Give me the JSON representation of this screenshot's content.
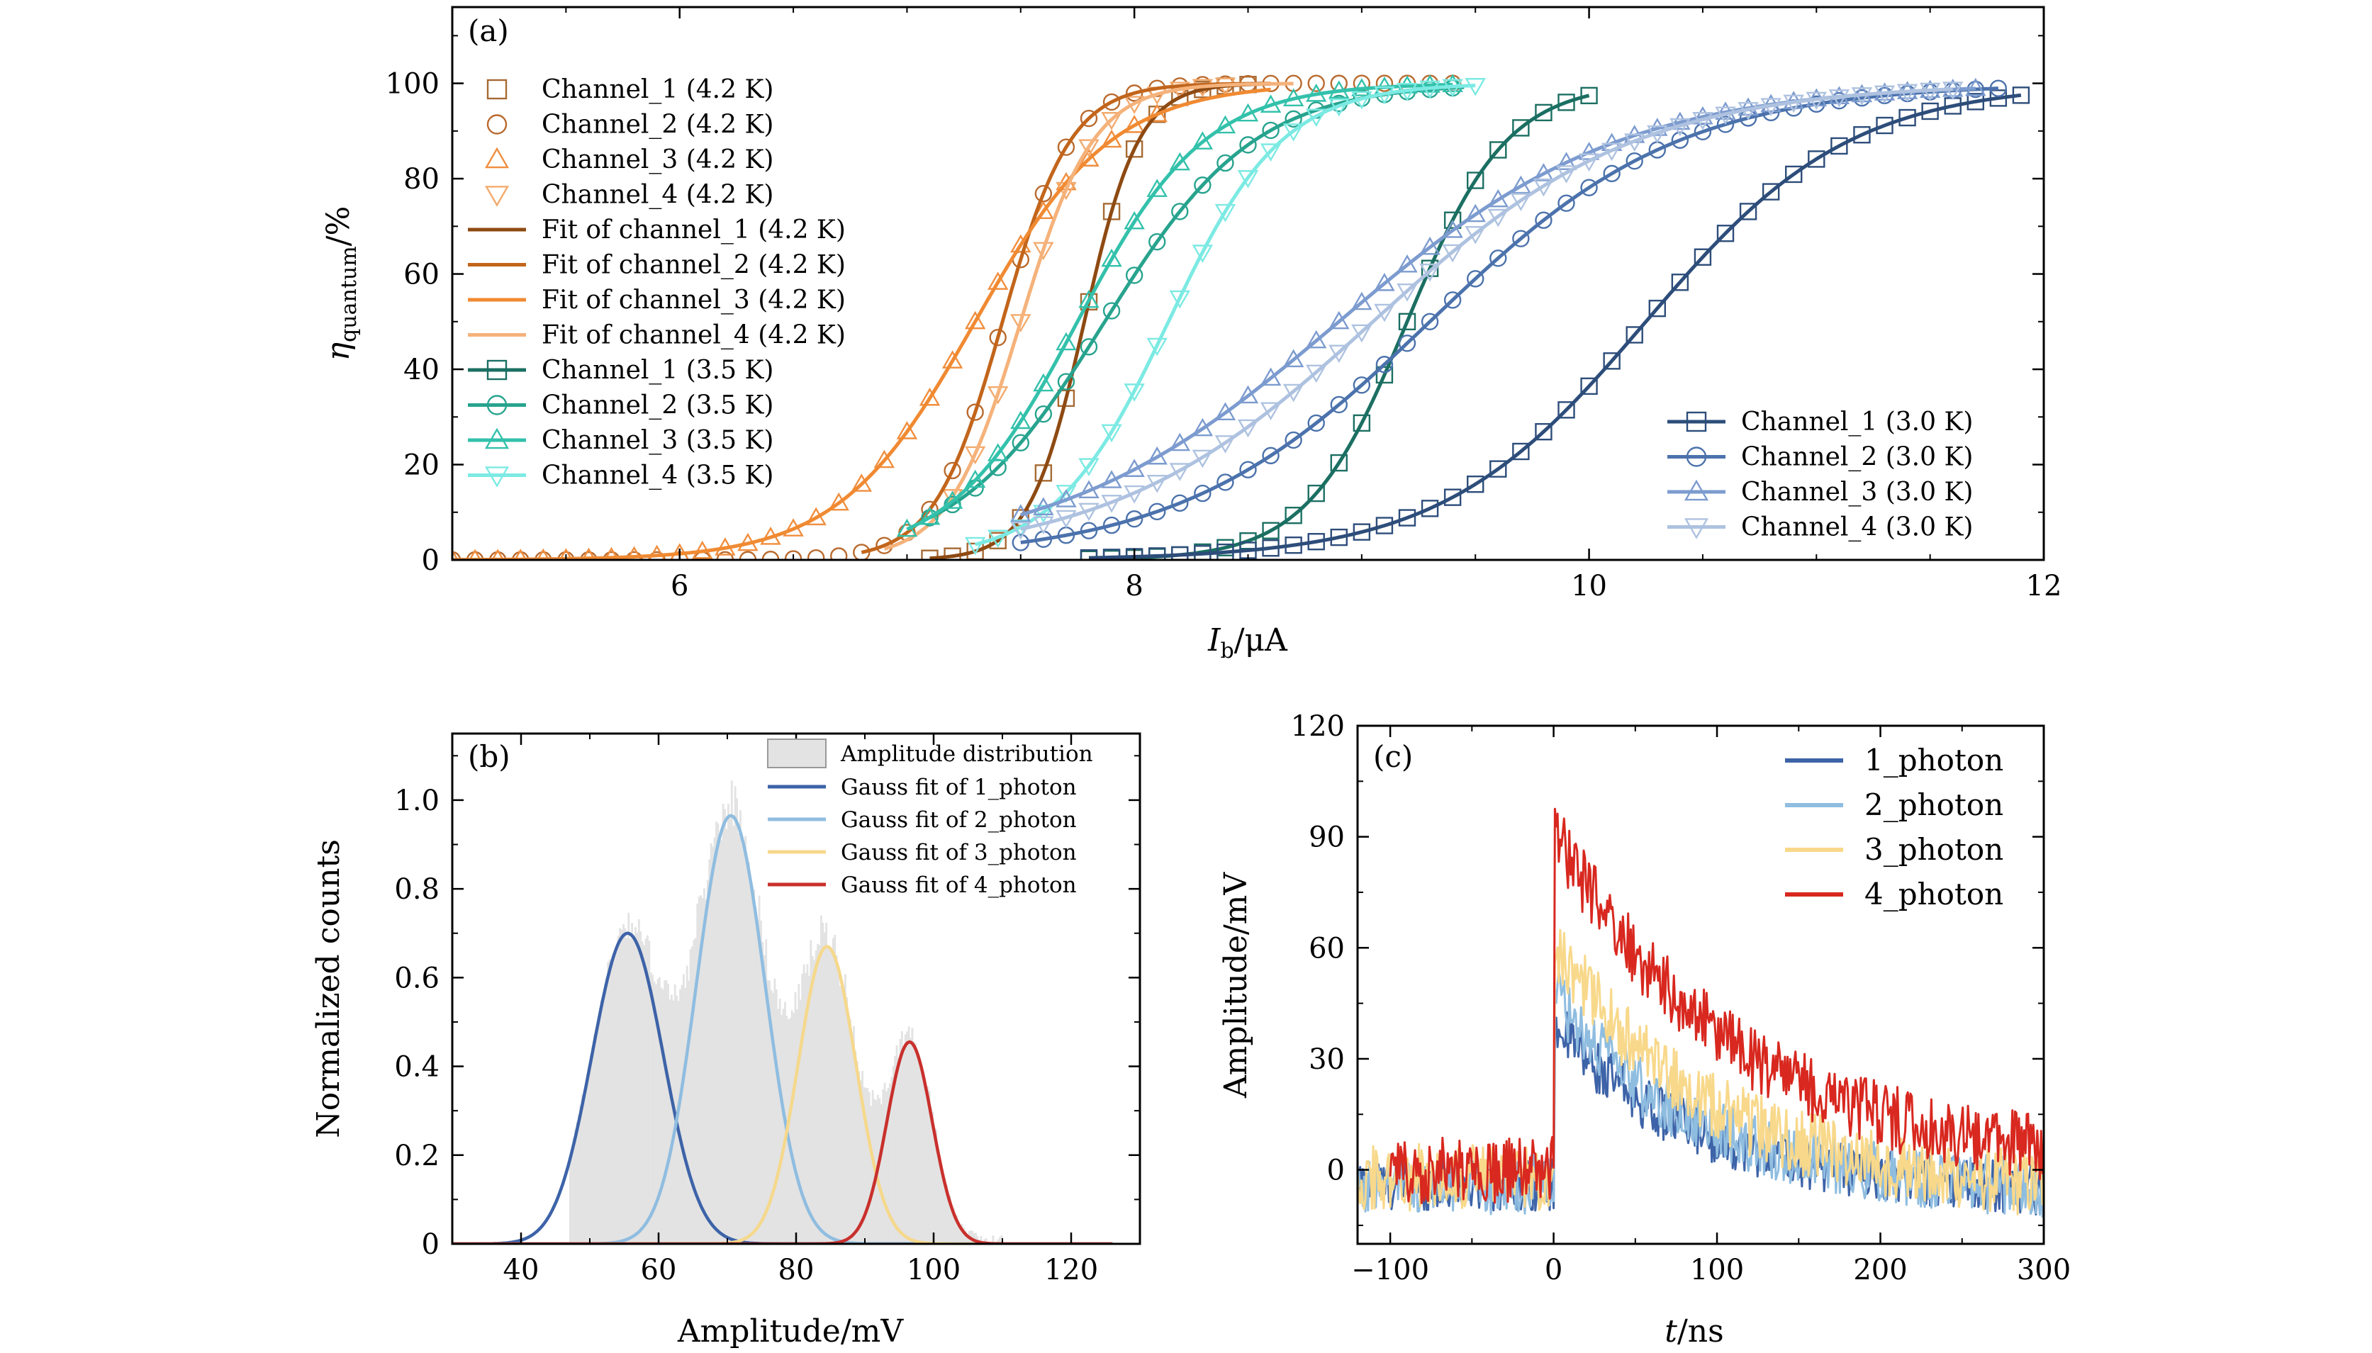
{
  "chart_data": [
    {
      "type": "line",
      "panel_label": "(a)",
      "xlabel": "I_b/μA",
      "ylabel": "η_quantum/%",
      "xlim": [
        5,
        12
      ],
      "ylim": [
        0,
        116
      ],
      "xticks": [
        6,
        8,
        10,
        12
      ],
      "yticks": [
        0,
        20,
        40,
        60,
        80,
        100
      ],
      "grid": false,
      "legend_left": "top-left",
      "legend_right": "bottom-right",
      "series": [
        {
          "name": "Channel_1 (4.2 K)",
          "role": "points",
          "marker": "square",
          "color": "#a66a33",
          "curve": {
            "i50": 7.78,
            "w": 0.12,
            "xmin": 7.1,
            "xmax": 8.5
          }
        },
        {
          "name": "Channel_2 (4.2 K)",
          "role": "points",
          "marker": "circle",
          "color": "#b96a2e",
          "curve": {
            "i50": 7.42,
            "w": 0.15,
            "xmin": 5.0,
            "xmax": 9.45
          }
        },
        {
          "name": "Channel_3 (4.2 K)",
          "role": "points",
          "marker": "triangle",
          "color": "#f08e3e",
          "curve": {
            "i50": 7.3,
            "w": 0.3,
            "xmin": 5.0,
            "xmax": 8.1
          }
        },
        {
          "name": "Channel_4 (4.2 K)",
          "role": "points",
          "marker": "triangle-down",
          "color": "#f3aa6d",
          "curve": {
            "i50": 7.5,
            "w": 0.16,
            "xmin": 7.2,
            "xmax": 8.4
          }
        },
        {
          "name": "Fit of channel_1 (4.2 K)",
          "role": "line",
          "color": "#8e4a12",
          "curve": {
            "i50": 7.78,
            "w": 0.12,
            "xmin": 7.1,
            "xmax": 8.6
          }
        },
        {
          "name": "Fit of channel_2 (4.2 K)",
          "role": "line",
          "color": "#c2651b",
          "curve": {
            "i50": 7.42,
            "w": 0.15,
            "xmin": 6.8,
            "xmax": 8.6
          }
        },
        {
          "name": "Fit of channel_3 (4.2 K)",
          "role": "line",
          "color": "#f08a32",
          "curve": {
            "i50": 7.3,
            "w": 0.3,
            "xmin": 5.0,
            "xmax": 8.6
          }
        },
        {
          "name": "Fit of channel_4 (4.2 K)",
          "role": "line",
          "color": "#f5b27a",
          "curve": {
            "i50": 7.5,
            "w": 0.16,
            "xmin": 6.9,
            "xmax": 8.7
          }
        },
        {
          "name": "Channel_1 (3.5 K)",
          "role": "both",
          "marker": "square",
          "color": "#1b6f62",
          "curve": {
            "i50": 9.2,
            "w": 0.22,
            "xmin": 7.8,
            "xmax": 10.0
          }
        },
        {
          "name": "Channel_2 (3.5 K)",
          "role": "both",
          "marker": "circle",
          "color": "#27a38e",
          "curve": {
            "i50": 7.87,
            "w": 0.33,
            "xmin": 7.1,
            "xmax": 9.45
          }
        },
        {
          "name": "Channel_3 (3.5 K)",
          "role": "both",
          "marker": "triangle",
          "color": "#33c1ab",
          "curve": {
            "i50": 7.75,
            "w": 0.28,
            "xmin": 7.0,
            "xmax": 9.4
          }
        },
        {
          "name": "Channel_4 (3.5 K)",
          "role": "both",
          "marker": "triangle-down",
          "color": "#7ceae3",
          "curve": {
            "i50": 8.15,
            "w": 0.25,
            "xmin": 7.3,
            "xmax": 9.5
          }
        },
        {
          "name": "Channel_1 (3.0 K)",
          "role": "both",
          "marker": "square",
          "color": "#2d4d7a",
          "curve": {
            "i50": 10.25,
            "w": 0.45,
            "xmin": 7.8,
            "xmax": 11.9
          }
        },
        {
          "name": "Channel_2 (3.0 K)",
          "role": "both",
          "marker": "circle",
          "color": "#4b72ac",
          "curve": {
            "i50": 9.3,
            "w": 0.55,
            "xmin": 7.5,
            "xmax": 11.8
          }
        },
        {
          "name": "Channel_3 (3.0 K)",
          "role": "both",
          "marker": "triangle",
          "color": "#7c9bcf",
          "curve": {
            "i50": 8.9,
            "w": 0.62,
            "xmin": 7.5,
            "xmax": 11.7
          }
        },
        {
          "name": "Channel_4 (3.0 K)",
          "role": "both",
          "marker": "triangle-down",
          "color": "#aec2e0",
          "curve": {
            "i50": 9.05,
            "w": 0.58,
            "xmin": 7.5,
            "xmax": 11.6
          }
        }
      ]
    },
    {
      "type": "area",
      "panel_label": "(b)",
      "xlabel": "Amplitude/mV",
      "ylabel": "Normalized counts",
      "xlim": [
        30,
        130
      ],
      "ylim": [
        0,
        1.15
      ],
      "xticks": [
        40,
        60,
        80,
        100,
        120
      ],
      "yticks": [
        0,
        0.2,
        0.4,
        0.6,
        0.8,
        1.0
      ],
      "ytick_labels": [
        "0",
        "0.2",
        "0.4",
        "0.6",
        "0.8",
        "1.0"
      ],
      "grid": false,
      "legend": "top-right",
      "histogram": {
        "name": "Amplitude distribution",
        "color": "#e3e3e3",
        "xmin": 47,
        "xmax": 110
      },
      "series": [
        {
          "name": "Gauss fit of 1_photon",
          "color": "#3d63a8",
          "mu": 55.5,
          "sigma": 5.2,
          "amp": 0.7
        },
        {
          "name": "Gauss fit of 2_photon",
          "color": "#8fbde0",
          "mu": 70.5,
          "sigma": 5.0,
          "amp": 0.965
        },
        {
          "name": "Gauss fit of 3_photon",
          "color": "#f6d88c",
          "mu": 84.5,
          "sigma": 4.2,
          "amp": 0.67
        },
        {
          "name": "Gauss fit of 4_photon",
          "color": "#c9302c",
          "mu": 96.5,
          "sigma": 3.3,
          "amp": 0.455
        }
      ]
    },
    {
      "type": "line",
      "panel_label": "(c)",
      "xlabel": "t/ns",
      "ylabel": "Amplitude/mV",
      "xlim": [
        -120,
        300
      ],
      "ylim": [
        -20,
        120
      ],
      "xticks": [
        -100,
        0,
        100,
        200,
        300
      ],
      "yticks": [
        0,
        30,
        60,
        90,
        120
      ],
      "grid": false,
      "legend": "top-right",
      "series": [
        {
          "name": "1_photon",
          "color": "#3d63a8",
          "peak": 40,
          "tau": 75,
          "noise": 7
        },
        {
          "name": "2_photon",
          "color": "#8fbde0",
          "peak": 48,
          "tau": 75,
          "noise": 8
        },
        {
          "name": "3_photon",
          "color": "#f8d88a",
          "peak": 62,
          "tau": 85,
          "noise": 9
        },
        {
          "name": "4_photon",
          "color": "#d8281f",
          "peak": 92,
          "tau": 110,
          "noise": 9
        }
      ]
    }
  ]
}
